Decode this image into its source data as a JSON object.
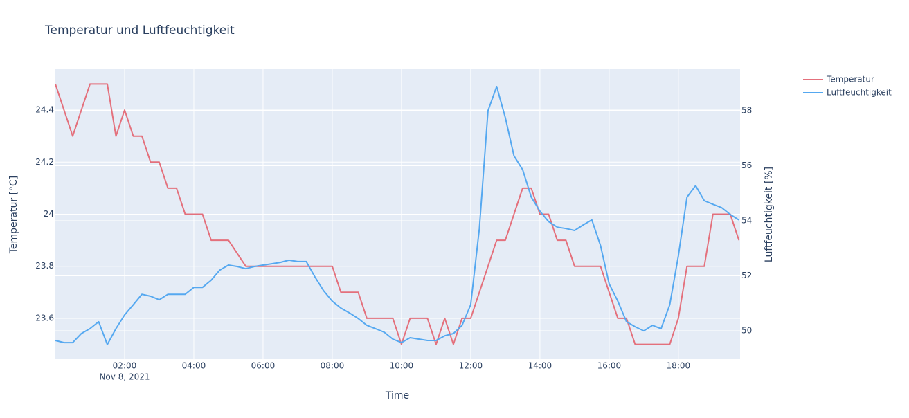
{
  "chart_data": {
    "type": "line",
    "title": "Temperatur und Luftfeuchtigkeit",
    "x_label": "Time",
    "y_label": "Temperatur [°C]",
    "y2_label": "Luftfeuchtigkeit [%]",
    "x_date_label": "Nov 8, 2021",
    "x": [
      "2021-11-08 00:00",
      "2021-11-08 00:15",
      "2021-11-08 00:30",
      "2021-11-08 00:45",
      "2021-11-08 01:00",
      "2021-11-08 01:15",
      "2021-11-08 01:30",
      "2021-11-08 01:45",
      "2021-11-08 02:00",
      "2021-11-08 02:15",
      "2021-11-08 02:30",
      "2021-11-08 02:45",
      "2021-11-08 03:00",
      "2021-11-08 03:15",
      "2021-11-08 03:30",
      "2021-11-08 03:45",
      "2021-11-08 04:00",
      "2021-11-08 04:15",
      "2021-11-08 04:30",
      "2021-11-08 04:45",
      "2021-11-08 05:00",
      "2021-11-08 05:15",
      "2021-11-08 05:30",
      "2021-11-08 05:45",
      "2021-11-08 06:00",
      "2021-11-08 06:15",
      "2021-11-08 06:30",
      "2021-11-08 06:45",
      "2021-11-08 07:00",
      "2021-11-08 07:15",
      "2021-11-08 07:30",
      "2021-11-08 07:45",
      "2021-11-08 08:00",
      "2021-11-08 08:15",
      "2021-11-08 08:30",
      "2021-11-08 08:45",
      "2021-11-08 09:00",
      "2021-11-08 09:15",
      "2021-11-08 09:30",
      "2021-11-08 09:45",
      "2021-11-08 10:00",
      "2021-11-08 10:15",
      "2021-11-08 10:30",
      "2021-11-08 10:45",
      "2021-11-08 11:00",
      "2021-11-08 11:15",
      "2021-11-08 11:30",
      "2021-11-08 11:45",
      "2021-11-08 12:00",
      "2021-11-08 12:15",
      "2021-11-08 12:30",
      "2021-11-08 12:45",
      "2021-11-08 13:00",
      "2021-11-08 13:15",
      "2021-11-08 13:30",
      "2021-11-08 13:45",
      "2021-11-08 14:00",
      "2021-11-08 14:15",
      "2021-11-08 14:30",
      "2021-11-08 14:45",
      "2021-11-08 15:00",
      "2021-11-08 15:15",
      "2021-11-08 15:30",
      "2021-11-08 15:45",
      "2021-11-08 16:00",
      "2021-11-08 16:15",
      "2021-11-08 16:30",
      "2021-11-08 16:45",
      "2021-11-08 17:00",
      "2021-11-08 17:15",
      "2021-11-08 17:30",
      "2021-11-08 17:45",
      "2021-11-08 18:00",
      "2021-11-08 18:15",
      "2021-11-08 18:30",
      "2021-11-08 18:45",
      "2021-11-08 19:00",
      "2021-11-08 19:15",
      "2021-11-08 19:30",
      "2021-11-08 19:45"
    ],
    "series": [
      {
        "name": "Temperatur",
        "color": "#e4707c",
        "values": [
          24.5,
          24.4,
          24.3,
          24.4,
          24.5,
          24.5,
          24.5,
          24.3,
          24.4,
          24.3,
          24.3,
          24.2,
          24.2,
          24.1,
          24.1,
          24.0,
          24.0,
          24.0,
          23.9,
          23.9,
          23.9,
          23.85,
          23.8,
          23.8,
          23.8,
          23.8,
          23.8,
          23.8,
          23.8,
          23.8,
          23.8,
          23.8,
          23.8,
          23.7,
          23.7,
          23.7,
          23.6,
          23.6,
          23.6,
          23.6,
          23.5,
          23.6,
          23.6,
          23.6,
          23.5,
          23.6,
          23.5,
          23.6,
          23.6,
          23.7,
          23.8,
          23.9,
          23.9,
          24.0,
          24.1,
          24.1,
          24.0,
          24.0,
          23.9,
          23.9,
          23.8,
          23.8,
          23.8,
          23.8,
          23.7,
          23.6,
          23.6,
          23.5,
          23.5,
          23.5,
          23.5,
          23.5,
          23.6,
          23.8,
          23.8,
          23.8,
          24.0,
          24.0,
          24.0,
          23.9
        ]
      },
      {
        "name": "Luftfeuchtigkeit",
        "color": "#55a8f0",
        "axis": "y2",
        "values": [
          49.65,
          49.57,
          49.57,
          49.9,
          50.08,
          50.33,
          49.5,
          50.08,
          50.58,
          50.95,
          51.33,
          51.26,
          51.13,
          51.33,
          51.33,
          51.33,
          51.58,
          51.58,
          51.84,
          52.21,
          52.39,
          52.34,
          52.26,
          52.34,
          52.39,
          52.44,
          52.49,
          52.57,
          52.52,
          52.52,
          51.96,
          51.46,
          51.08,
          50.83,
          50.65,
          50.45,
          50.2,
          50.08,
          49.95,
          49.7,
          49.57,
          49.75,
          49.7,
          49.65,
          49.65,
          49.82,
          49.9,
          50.2,
          50.95,
          53.72,
          58.0,
          58.88,
          57.75,
          56.36,
          55.86,
          54.86,
          54.35,
          53.97,
          53.77,
          53.72,
          53.65,
          53.85,
          54.03,
          53.1,
          51.71,
          51.08,
          50.33,
          50.15,
          50.0,
          50.2,
          50.08,
          50.95,
          52.72,
          54.86,
          55.28,
          54.73,
          54.6,
          54.48,
          54.23,
          54.03
        ]
      }
    ],
    "xlim": [
      "2021-11-08 00:00",
      "2021-11-08 19:47"
    ],
    "xticks": [
      {
        "value": "2021-11-08 02:00",
        "label": "02:00"
      },
      {
        "value": "2021-11-08 04:00",
        "label": "04:00"
      },
      {
        "value": "2021-11-08 06:00",
        "label": "06:00"
      },
      {
        "value": "2021-11-08 08:00",
        "label": "08:00"
      },
      {
        "value": "2021-11-08 10:00",
        "label": "10:00"
      },
      {
        "value": "2021-11-08 12:00",
        "label": "12:00"
      },
      {
        "value": "2021-11-08 14:00",
        "label": "14:00"
      },
      {
        "value": "2021-11-08 16:00",
        "label": "16:00"
      },
      {
        "value": "2021-11-08 18:00",
        "label": "18:00"
      }
    ],
    "ylim": [
      23.443,
      24.557
    ],
    "yticks": [
      23.6,
      23.8,
      24,
      24.2,
      24.4
    ],
    "y2lim": [
      48.97,
      59.51
    ],
    "y2ticks": [
      50,
      52,
      54,
      56,
      58
    ],
    "grid": true,
    "legend": "top-right-outside"
  }
}
